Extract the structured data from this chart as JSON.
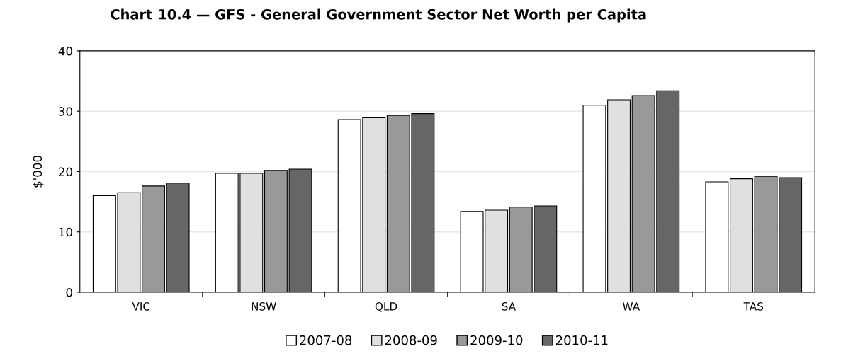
{
  "chart_data": {
    "type": "bar",
    "title": "Chart 10.4 — GFS - General Government Sector Net Worth per Capita",
    "ylabel": "$'000",
    "categories": [
      "VIC",
      "NSW",
      "QLD",
      "SA",
      "WA",
      "TAS"
    ],
    "series": [
      {
        "name": "2007-08",
        "color": "#ffffff",
        "values": [
          16.0,
          19.7,
          28.6,
          13.4,
          31.0,
          18.3
        ]
      },
      {
        "name": "2008-09",
        "color": "#e0e0e0",
        "values": [
          16.5,
          19.7,
          28.9,
          13.6,
          31.9,
          18.8
        ]
      },
      {
        "name": "2009-10",
        "color": "#999999",
        "values": [
          17.6,
          20.2,
          29.3,
          14.1,
          32.6,
          19.2
        ]
      },
      {
        "name": "2010-11",
        "color": "#666666",
        "values": [
          18.1,
          20.4,
          29.6,
          14.3,
          33.4,
          19.0
        ]
      }
    ],
    "ylim": [
      0,
      40
    ],
    "yticks": [
      0,
      10,
      20,
      30,
      40
    ],
    "grid": "y",
    "legend": "bottom"
  }
}
